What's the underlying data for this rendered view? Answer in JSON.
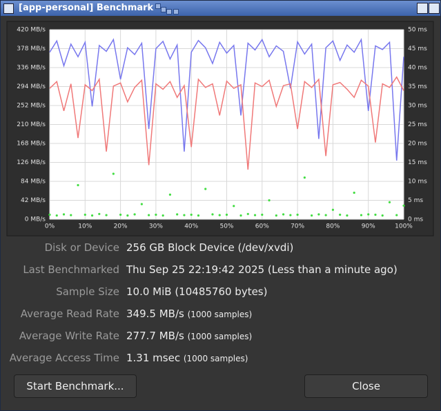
{
  "window": {
    "title": "[app-personal] Benchmark"
  },
  "chart_data": {
    "type": "line",
    "x": [
      0,
      2,
      4,
      6,
      8,
      10,
      12,
      14,
      16,
      18,
      20,
      22,
      24,
      26,
      28,
      30,
      32,
      34,
      36,
      38,
      40,
      42,
      44,
      46,
      48,
      50,
      52,
      54,
      56,
      58,
      60,
      62,
      64,
      66,
      68,
      70,
      72,
      74,
      76,
      78,
      80,
      82,
      84,
      86,
      88,
      90,
      92,
      94,
      96,
      98,
      100
    ],
    "series": [
      {
        "color": "#7777ee",
        "values": [
          370,
          395,
          340,
          388,
          360,
          392,
          250,
          385,
          372,
          398,
          310,
          380,
          365,
          390,
          200,
          378,
          394,
          355,
          386,
          150,
          370,
          396,
          380,
          345,
          392,
          368,
          385,
          230,
          390,
          375,
          398,
          360,
          384,
          372,
          290,
          393,
          366,
          388,
          178,
          380,
          395,
          352,
          386,
          370,
          398,
          240,
          384,
          376,
          392,
          130,
          360
        ]
      },
      {
        "color": "#f07878",
        "values": [
          290,
          305,
          240,
          300,
          180,
          298,
          285,
          310,
          150,
          295,
          302,
          260,
          292,
          308,
          120,
          300,
          288,
          305,
          270,
          296,
          160,
          310,
          292,
          300,
          230,
          306,
          290,
          298,
          110,
          302,
          294,
          308,
          250,
          296,
          300,
          200,
          305,
          292,
          310,
          140,
          298,
          303,
          288,
          270,
          308,
          295,
          170,
          300,
          292,
          315,
          285
        ]
      },
      {
        "color": "#44dd44",
        "axis": "y2",
        "values": [
          1.2,
          1.0,
          1.3,
          1.1,
          9,
          1.2,
          1.0,
          1.4,
          1.1,
          12,
          1.2,
          1.0,
          1.3,
          4,
          1.1,
          1.2,
          1.0,
          6.5,
          1.3,
          1.1,
          1.2,
          1.0,
          8,
          1.3,
          1.1,
          1.2,
          3.5,
          1.0,
          1.4,
          1.1,
          1.2,
          5,
          1.0,
          1.3,
          1.1,
          1.2,
          11,
          1.0,
          1.3,
          1.1,
          2.5,
          1.2,
          1.0,
          7,
          1.1,
          1.3,
          1.2,
          1.0,
          4.5,
          1.1,
          3.6
        ]
      }
    ],
    "xlim": [
      0,
      100
    ],
    "xticks": [
      {
        "value": 0,
        "label": "0%"
      },
      {
        "value": 10,
        "label": "10%"
      },
      {
        "value": 20,
        "label": "20%"
      },
      {
        "value": 30,
        "label": "30%"
      },
      {
        "value": 40,
        "label": "40%"
      },
      {
        "value": 50,
        "label": "50%"
      },
      {
        "value": 60,
        "label": "60%"
      },
      {
        "value": 70,
        "label": "70%"
      },
      {
        "value": 80,
        "label": "80%"
      },
      {
        "value": 90,
        "label": "90%"
      },
      {
        "value": 100,
        "label": "100%"
      }
    ],
    "ylim": [
      0,
      420
    ],
    "yticks": [
      {
        "value": 0,
        "label": "0 MB/s"
      },
      {
        "value": 42,
        "label": "42 MB/s"
      },
      {
        "value": 84,
        "label": "84 MB/s"
      },
      {
        "value": 126,
        "label": "126 MB/s"
      },
      {
        "value": 168,
        "label": "168 MB/s"
      },
      {
        "value": 210,
        "label": "210 MB/s"
      },
      {
        "value": 252,
        "label": "252 MB/s"
      },
      {
        "value": 294,
        "label": "294 MB/s"
      },
      {
        "value": 336,
        "label": "336 MB/s"
      },
      {
        "value": 378,
        "label": "378 MB/s"
      },
      {
        "value": 420,
        "label": "420 MB/s"
      }
    ],
    "y2lim": [
      0,
      50
    ],
    "y2ticks": [
      {
        "value": 0,
        "label": "0 ms"
      },
      {
        "value": 5,
        "label": "5 ms"
      },
      {
        "value": 10,
        "label": "10 ms"
      },
      {
        "value": 15,
        "label": "15 ms"
      },
      {
        "value": 20,
        "label": "20 ms"
      },
      {
        "value": 25,
        "label": "25 ms"
      },
      {
        "value": 30,
        "label": "30 ms"
      },
      {
        "value": 35,
        "label": "35 ms"
      },
      {
        "value": 40,
        "label": "40 ms"
      },
      {
        "value": 45,
        "label": "45 ms"
      },
      {
        "value": 50,
        "label": "50 ms"
      }
    ],
    "grid": true
  },
  "info": [
    {
      "label": "Disk or Device",
      "value": "256 GB Block Device (/dev/xvdi)"
    },
    {
      "label": "Last Benchmarked",
      "value": "Thu Sep 25 22:19:42 2025 (Less than a minute ago)"
    },
    {
      "label": "Sample Size",
      "value": "10.0 MiB (10485760 bytes)"
    },
    {
      "label": "Average Read Rate",
      "value": "349.5 MB/s",
      "note": "(1000 samples)"
    },
    {
      "label": "Average Write Rate",
      "value": "277.7 MB/s",
      "note": "(1000 samples)"
    },
    {
      "label": "Average Access Time",
      "value": "1.31 msec",
      "note": "(1000 samples)"
    }
  ],
  "buttons": {
    "start": "Start Benchmark...",
    "close": "Close"
  }
}
